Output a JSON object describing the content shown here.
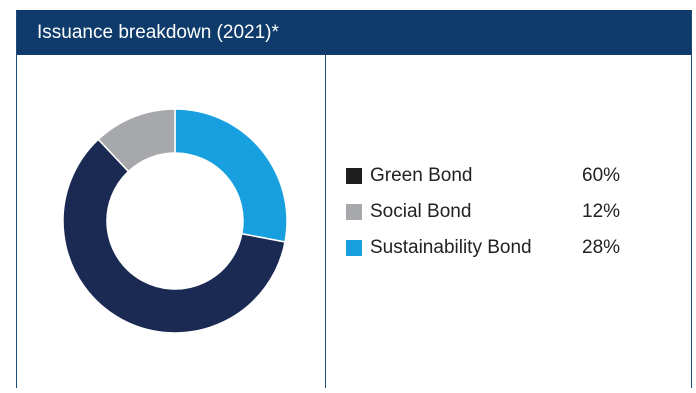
{
  "header": {
    "title": "Issuance breakdown (2021)*"
  },
  "chart_data": {
    "type": "pie",
    "style": "donut",
    "title": "Issuance breakdown (2021)*",
    "legend_position": "right",
    "categories": [
      "Green Bond",
      "Social Bond",
      "Sustainability Bond"
    ],
    "values": [
      60,
      12,
      28
    ],
    "value_labels": [
      "60%",
      "12%",
      "28%"
    ],
    "unit": "%",
    "colors": [
      "#1a2a52",
      "#a6a8ab",
      "#179fe0"
    ],
    "legend_swatch_colors": [
      "#1e1e1e",
      "#a6a8ab",
      "#179fe0"
    ],
    "start_category": "Sustainability Bond",
    "direction": "clockwise"
  },
  "colors": {
    "header_bg": "#0e3b6b",
    "header_text": "#ffffff",
    "border": "#1f4d7a"
  }
}
